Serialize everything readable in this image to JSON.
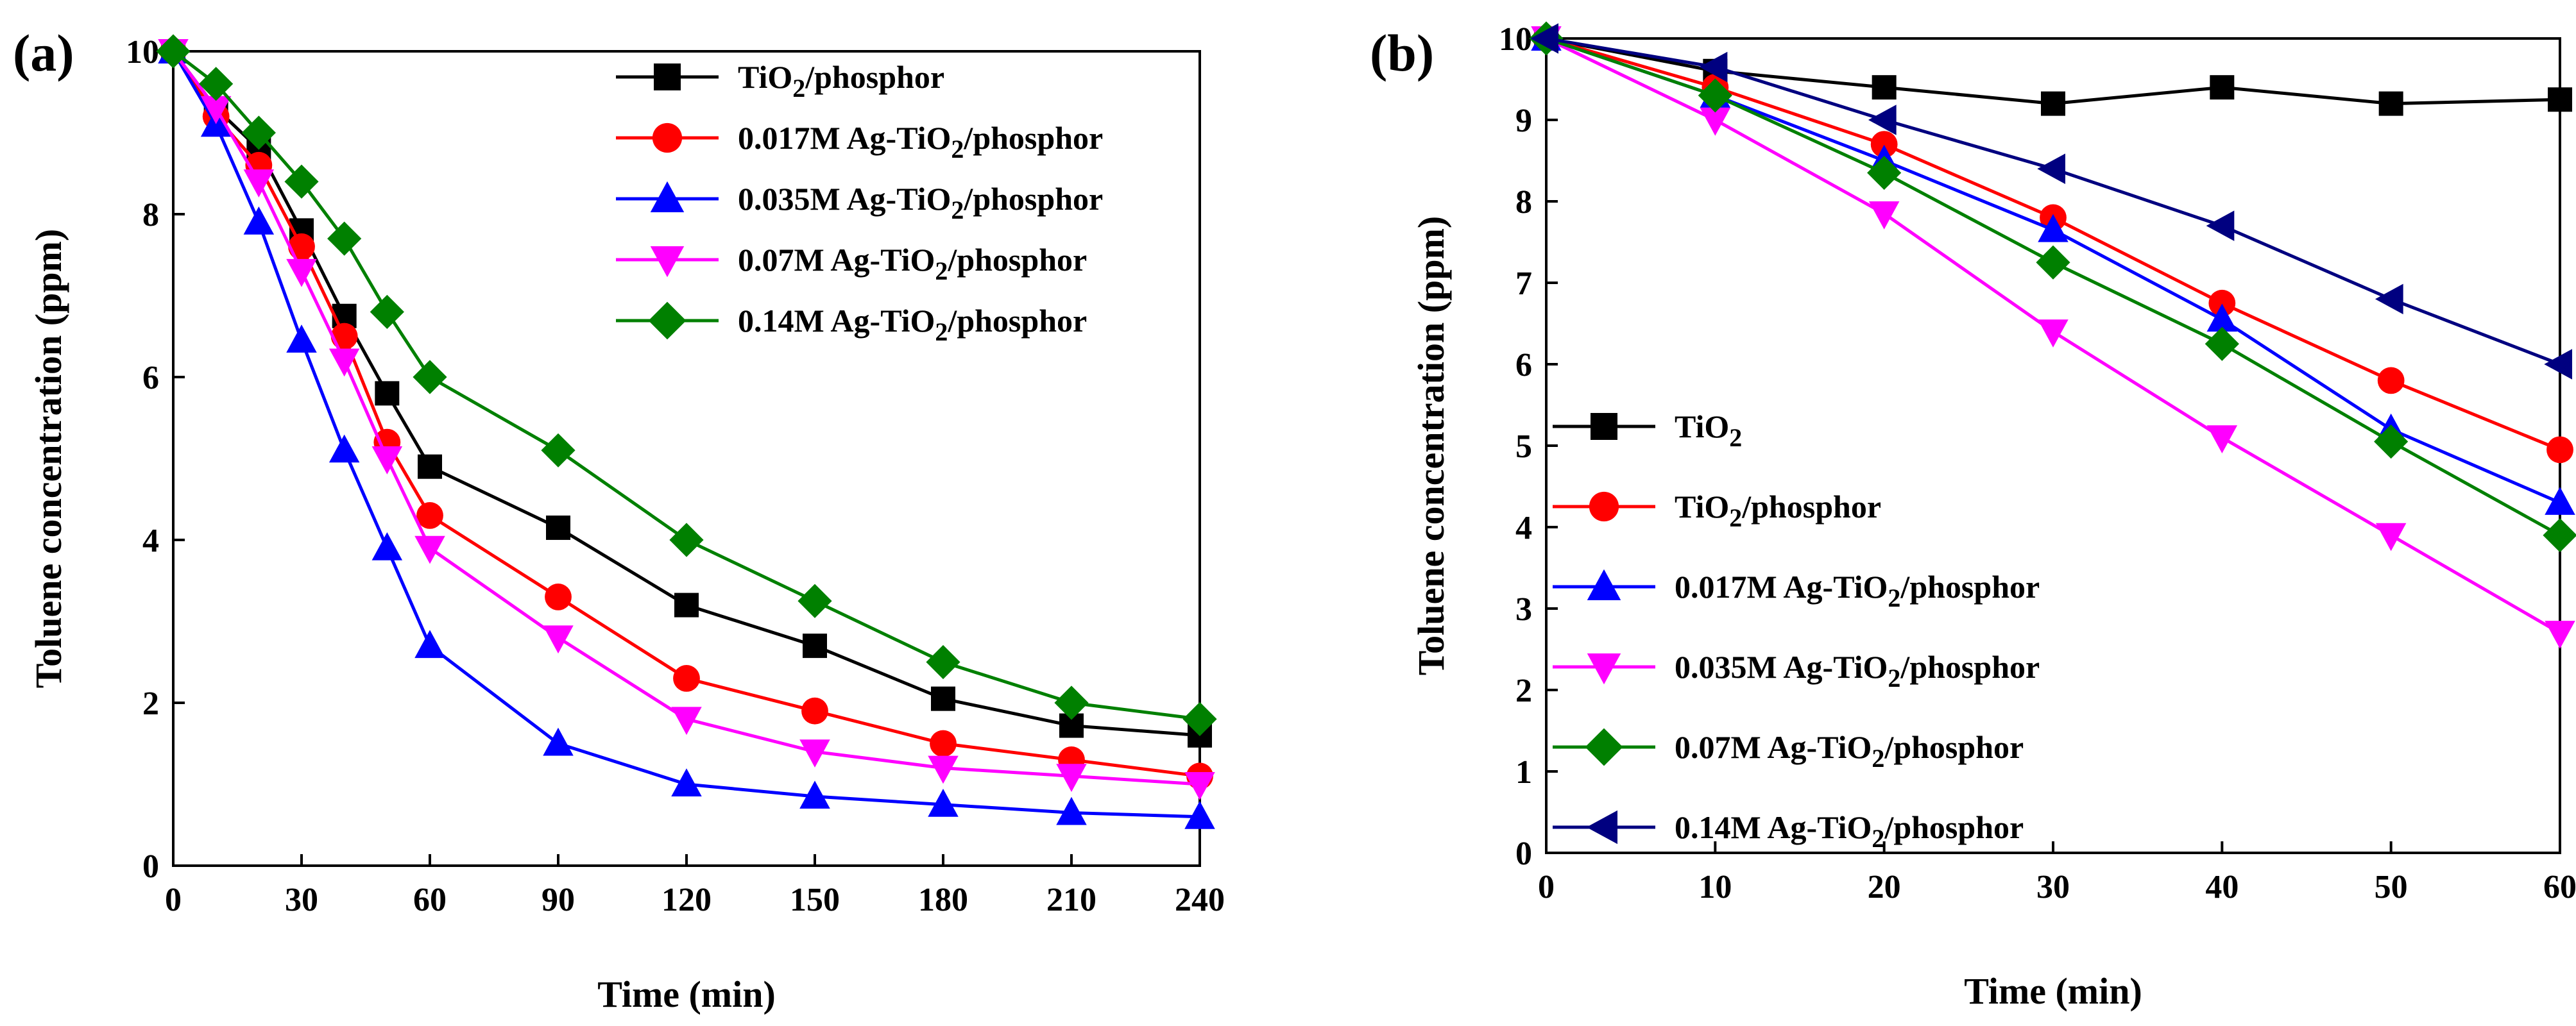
{
  "chart_data": [
    {
      "type": "line",
      "panel_label": "(a)",
      "xlabel": "Time (min)",
      "ylabel": "Toluene concentration (ppm)",
      "xlim": [
        0,
        240
      ],
      "ylim": [
        0,
        10
      ],
      "xticks": [
        0,
        30,
        60,
        90,
        120,
        150,
        180,
        210,
        240
      ],
      "yticks": [
        0,
        2,
        4,
        6,
        8,
        10
      ],
      "x": [
        0,
        10,
        20,
        30,
        40,
        50,
        60,
        90,
        120,
        150,
        180,
        210,
        240
      ],
      "legend_position": "top-right",
      "series": [
        {
          "name": "TiO2/phosphor",
          "name_main": "TiO",
          "name_sub": "2",
          "name_tail": "/phosphor",
          "color": "#000000",
          "marker": "square",
          "values": [
            10,
            9.3,
            8.8,
            7.8,
            6.75,
            5.8,
            4.9,
            4.15,
            3.2,
            2.7,
            2.05,
            1.72,
            1.6
          ]
        },
        {
          "name": "0.017M Ag-TiO2/phosphor",
          "name_main": "0.017M Ag-TiO",
          "name_sub": "2",
          "name_tail": "/phosphor",
          "color": "#ff0000",
          "marker": "circle",
          "values": [
            10,
            9.2,
            8.6,
            7.6,
            6.5,
            5.2,
            4.3,
            3.3,
            2.3,
            1.9,
            1.5,
            1.3,
            1.1
          ]
        },
        {
          "name": "0.035M Ag-TiO2/phosphor",
          "name_main": "0.035M Ag-TiO",
          "name_sub": "2",
          "name_tail": "/phosphor",
          "color": "#0000ff",
          "marker": "triangle-up",
          "values": [
            10,
            9.1,
            7.9,
            6.45,
            5.1,
            3.9,
            2.7,
            1.5,
            1.0,
            0.85,
            0.75,
            0.65,
            0.6
          ]
        },
        {
          "name": "0.07M Ag-TiO2/phosphor",
          "name_main": "0.07M Ag-TiO",
          "name_sub": "2",
          "name_tail": "/phosphor",
          "color": "#ff00ff",
          "marker": "triangle-down",
          "values": [
            10,
            9.3,
            8.4,
            7.3,
            6.2,
            5.0,
            3.9,
            2.8,
            1.8,
            1.4,
            1.2,
            1.1,
            1.0
          ]
        },
        {
          "name": "0.14M Ag-TiO2/phosphor",
          "name_main": "0.14M Ag-TiO",
          "name_sub": "2",
          "name_tail": "/phosphor",
          "color": "#008000",
          "marker": "diamond",
          "values": [
            10,
            9.6,
            9.0,
            8.4,
            7.7,
            6.8,
            6.0,
            5.1,
            4.0,
            3.25,
            2.5,
            2.0,
            1.8
          ]
        }
      ]
    },
    {
      "type": "line",
      "panel_label": "(b)",
      "xlabel": "Time (min)",
      "ylabel": "Toluene concentration (ppm)",
      "xlim": [
        0,
        60
      ],
      "ylim": [
        0,
        10
      ],
      "xticks": [
        0,
        10,
        20,
        30,
        40,
        50,
        60
      ],
      "yticks": [
        0,
        1,
        2,
        3,
        4,
        5,
        6,
        7,
        8,
        9,
        10
      ],
      "x": [
        0,
        10,
        20,
        30,
        40,
        50,
        60
      ],
      "legend_position": "bottom-left",
      "series": [
        {
          "name": "TiO2",
          "name_main": "TiO",
          "name_sub": "2",
          "name_tail": "",
          "color": "#000000",
          "marker": "square",
          "values": [
            10,
            9.6,
            9.4,
            9.2,
            9.4,
            9.2,
            9.25
          ]
        },
        {
          "name": "TiO2/phosphor",
          "name_main": "TiO",
          "name_sub": "2",
          "name_tail": "/phosphor",
          "color": "#ff0000",
          "marker": "circle",
          "values": [
            10,
            9.4,
            8.7,
            7.8,
            6.75,
            5.8,
            4.95
          ]
        },
        {
          "name": "0.017M Ag-TiO2/phosphor",
          "name_main": "0.017M Ag-TiO",
          "name_sub": "2",
          "name_tail": "/phosphor",
          "color": "#0000ff",
          "marker": "triangle-up",
          "values": [
            10,
            9.3,
            8.5,
            7.65,
            6.55,
            5.2,
            4.3
          ]
        },
        {
          "name": "0.035M Ag-TiO2/phosphor",
          "name_main": "0.035M Ag-TiO",
          "name_sub": "2",
          "name_tail": "/phosphor",
          "color": "#ff00ff",
          "marker": "triangle-down",
          "values": [
            10,
            9.0,
            7.85,
            6.4,
            5.1,
            3.9,
            2.7
          ]
        },
        {
          "name": "0.07M Ag-TiO2/phosphor",
          "name_main": "0.07M Ag-TiO",
          "name_sub": "2",
          "name_tail": "/phosphor",
          "color": "#008000",
          "marker": "diamond",
          "values": [
            10,
            9.3,
            8.35,
            7.25,
            6.25,
            5.05,
            3.9
          ]
        },
        {
          "name": "0.14M Ag-TiO2/phosphor",
          "name_main": "0.14M Ag-TiO",
          "name_sub": "2",
          "name_tail": "/phosphor",
          "color": "#000080",
          "marker": "triangle-left",
          "values": [
            10,
            9.65,
            9.0,
            8.4,
            7.7,
            6.8,
            6.0
          ]
        }
      ]
    }
  ]
}
